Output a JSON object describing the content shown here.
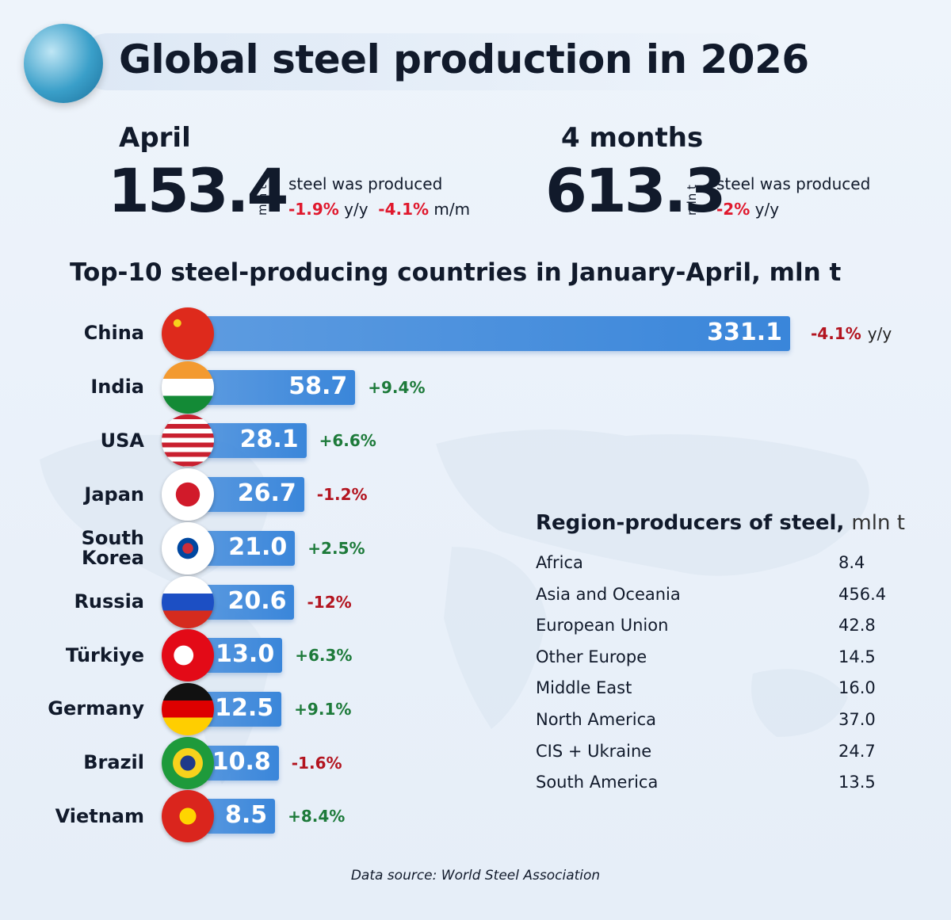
{
  "header": {
    "title": "Global steel production in 2026"
  },
  "summary": [
    {
      "period": "April",
      "value": "153.4",
      "unit": "mln t",
      "note": "steel was produced",
      "changes": [
        {
          "value": "-1.9%",
          "unit": "y/y"
        },
        {
          "value": "-4.1%",
          "unit": "m/m"
        }
      ]
    },
    {
      "period": "4 months",
      "value": "613.3",
      "unit": "mln t",
      "note": "steel was produced",
      "changes": [
        {
          "value": "-2%",
          "unit": "y/y"
        }
      ]
    }
  ],
  "chart_data": {
    "type": "bar",
    "orientation": "horizontal",
    "title": "Top-10 steel-producing countries in January-April, mln t",
    "categories": [
      "China",
      "India",
      "USA",
      "Japan",
      "South Korea",
      "Russia",
      "Türkiye",
      "Germany",
      "Brazil",
      "Vietnam"
    ],
    "values": [
      331.1,
      58.7,
      28.1,
      26.7,
      21.0,
      20.6,
      13.0,
      12.5,
      10.8,
      8.5
    ],
    "value_labels": [
      "331.1",
      "58.7",
      "28.1",
      "26.7",
      "21.0",
      "20.6",
      "13.0",
      "12.5",
      "10.8",
      "8.5"
    ],
    "changes": [
      "-4.1%",
      "+9.4%",
      "+6.6%",
      "-1.2%",
      "+2.5%",
      "-12%",
      "+6.3%",
      "+9.1%",
      "-1.6%",
      "+8.4%"
    ],
    "change_unit": "y/y",
    "color": "#3a86da"
  },
  "regions": {
    "title": "Region-producers of steel,",
    "unit": "mln t",
    "rows": [
      [
        "Africa",
        "8.4"
      ],
      [
        "Asia and Oceania",
        "456.4"
      ],
      [
        "European Union",
        "42.8"
      ],
      [
        "Other Europe",
        "14.5"
      ],
      [
        "Middle East",
        "16.0"
      ],
      [
        "North America",
        "37.0"
      ],
      [
        "CIS + Ukraine",
        "24.7"
      ],
      [
        "South America",
        "13.5"
      ]
    ]
  },
  "source": "Data source: World Steel Association"
}
